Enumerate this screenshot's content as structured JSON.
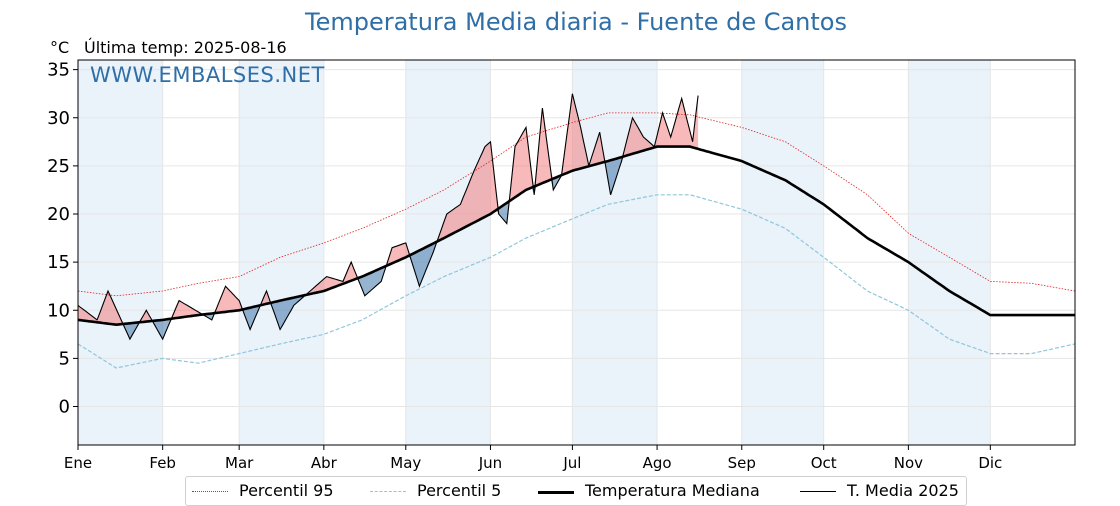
{
  "title": "Temperatura Media diaria - Fuente de Cantos",
  "unit": "°C",
  "last_temp": "Última temp: 2025-08-16",
  "watermark": "WWW.EMBALSES.NET",
  "colors": {
    "title": "#2f6fa8",
    "p95": "#e02020",
    "p5": "#8ec7dc",
    "median": "#000000",
    "current": "#000000",
    "fill_above": "#f08080",
    "fill_below": "#3f77aa",
    "month_band": "#eaf2fa"
  },
  "chart_data": {
    "type": "line",
    "ylim": [
      -4,
      36
    ],
    "yticks": [
      0,
      5,
      10,
      15,
      20,
      25,
      30,
      35
    ],
    "xlim": [
      1,
      366
    ],
    "x_ticks": [
      {
        "label": "Ene",
        "day": 1
      },
      {
        "label": "Feb",
        "day": 32
      },
      {
        "label": "Mar",
        "day": 60
      },
      {
        "label": "Abr",
        "day": 91
      },
      {
        "label": "May",
        "day": 121
      },
      {
        "label": "Jun",
        "day": 152
      },
      {
        "label": "Jul",
        "day": 182
      },
      {
        "label": "Ago",
        "day": 213
      },
      {
        "label": "Sep",
        "day": 244
      },
      {
        "label": "Oct",
        "day": 274
      },
      {
        "label": "Nov",
        "day": 305
      },
      {
        "label": "Dic",
        "day": 335
      }
    ],
    "grid": true,
    "legend_position": "bottom",
    "series": [
      {
        "name": "Percentil 95",
        "x": [
          1,
          15,
          32,
          45,
          60,
          75,
          91,
          105,
          121,
          135,
          152,
          165,
          182,
          195,
          213,
          225,
          244,
          260,
          274,
          290,
          305,
          320,
          335,
          350,
          366
        ],
        "values": [
          12.0,
          11.5,
          12.0,
          12.8,
          13.5,
          15.5,
          17.0,
          18.5,
          20.5,
          22.5,
          25.5,
          28.0,
          29.5,
          30.5,
          30.5,
          30.3,
          29.0,
          27.5,
          25.0,
          22.0,
          18.0,
          15.5,
          13.0,
          12.8,
          12.0
        ]
      },
      {
        "name": "Percentil 5",
        "x": [
          1,
          15,
          32,
          45,
          60,
          75,
          91,
          105,
          121,
          135,
          152,
          165,
          182,
          195,
          213,
          225,
          244,
          260,
          274,
          290,
          305,
          320,
          335,
          350,
          366
        ],
        "values": [
          6.5,
          4.0,
          5.0,
          4.5,
          5.5,
          6.5,
          7.5,
          9.0,
          11.5,
          13.5,
          15.5,
          17.5,
          19.5,
          21.0,
          22.0,
          22.0,
          20.5,
          18.5,
          15.5,
          12.0,
          10.0,
          7.0,
          5.5,
          5.5,
          6.5
        ]
      },
      {
        "name": "Temperatura Mediana",
        "x": [
          1,
          15,
          32,
          45,
          60,
          75,
          91,
          105,
          121,
          135,
          152,
          165,
          182,
          195,
          213,
          225,
          244,
          260,
          274,
          290,
          305,
          320,
          335,
          350,
          366
        ],
        "values": [
          9.0,
          8.5,
          9.0,
          9.5,
          10.0,
          11.0,
          12.0,
          13.5,
          15.5,
          17.5,
          20.0,
          22.5,
          24.5,
          25.5,
          27.0,
          27.0,
          25.5,
          23.5,
          21.0,
          17.5,
          15.0,
          12.0,
          9.5,
          9.5,
          9.5
        ]
      },
      {
        "name": "T. Media 2025",
        "x": [
          1,
          8,
          12,
          20,
          26,
          32,
          38,
          44,
          50,
          55,
          60,
          64,
          70,
          75,
          80,
          86,
          92,
          98,
          101,
          106,
          112,
          116,
          121,
          126,
          131,
          136,
          141,
          146,
          150,
          152,
          155,
          158,
          161,
          165,
          168,
          171,
          175,
          178,
          182,
          185,
          188,
          192,
          196,
          200,
          204,
          208,
          212,
          215,
          218,
          222,
          226,
          228
        ],
        "values": [
          10.5,
          9.0,
          12.0,
          7.0,
          10.0,
          7.0,
          11.0,
          10.0,
          9.0,
          12.5,
          11.0,
          8.0,
          12.0,
          8.0,
          10.5,
          12.0,
          13.5,
          13.0,
          15.0,
          11.5,
          13.0,
          16.5,
          17.0,
          12.5,
          16.0,
          20.0,
          21.0,
          24.5,
          27.0,
          27.5,
          20.0,
          19.0,
          27.0,
          29.0,
          22.0,
          31.0,
          22.5,
          24.0,
          32.5,
          29.0,
          25.0,
          28.5,
          22.0,
          25.5,
          30.0,
          28.0,
          27.0,
          30.5,
          28.0,
          32.0,
          27.5,
          32.3
        ]
      }
    ]
  },
  "legend": [
    {
      "label": "Percentil 95"
    },
    {
      "label": "Percentil 5"
    },
    {
      "label": "Temperatura Mediana"
    },
    {
      "label": "T. Media 2025"
    }
  ]
}
